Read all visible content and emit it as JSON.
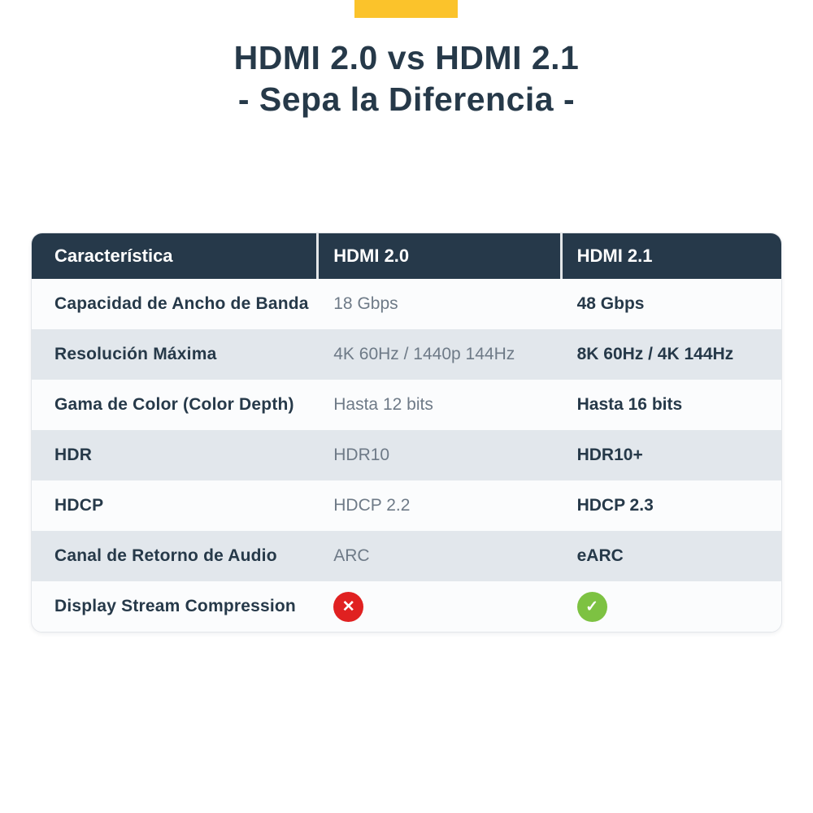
{
  "accent_bar": {
    "color": "#fbc32b"
  },
  "title": {
    "line1": "HDMI 2.0 vs HDMI 2.1",
    "line2": "- Sepa la Diferencia -",
    "color": "#263949"
  },
  "chart_data": {
    "type": "table",
    "title": "HDMI 2.0 vs HDMI 2.1 - Sepa la Diferencia -",
    "columns": [
      "Característica",
      "HDMI 2.0",
      "HDMI 2.1"
    ],
    "rows": [
      {
        "feature": "Capacidad de Ancho de Banda",
        "hdmi20": "18 Gbps",
        "hdmi21": "48 Gbps"
      },
      {
        "feature": "Resolución Máxima",
        "hdmi20": "4K 60Hz / 1440p 144Hz",
        "hdmi21": "8K 60Hz / 4K 144Hz"
      },
      {
        "feature": "Gama de Color (Color Depth)",
        "hdmi20": "Hasta 12 bits",
        "hdmi21": "Hasta 16 bits"
      },
      {
        "feature": "HDR",
        "hdmi20": "HDR10",
        "hdmi21": "HDR10+"
      },
      {
        "feature": "HDCP",
        "hdmi20": "HDCP 2.2",
        "hdmi21": "HDCP 2.3"
      },
      {
        "feature": "Canal de Retorno de Audio",
        "hdmi20": "ARC",
        "hdmi21": "eARC"
      },
      {
        "feature": "Display Stream Compression",
        "hdmi20": "no",
        "hdmi21": "yes"
      }
    ],
    "layout": {
      "grid": "off",
      "header_background": "#26394a",
      "header_text_color": "#ffffff",
      "row_background": "#fbfcfd",
      "row_alt_background": "#e2e7ec",
      "feature_text_color": "#263949",
      "hdmi20_text_color": "#6e7a87",
      "hdmi21_text_color": "#263949"
    }
  },
  "icons": {
    "cross": {
      "name": "cross-circle-icon",
      "glyph": "✕",
      "color": "#e02121"
    },
    "check": {
      "name": "check-circle-icon",
      "glyph": "✓",
      "color": "#7dc242"
    }
  }
}
